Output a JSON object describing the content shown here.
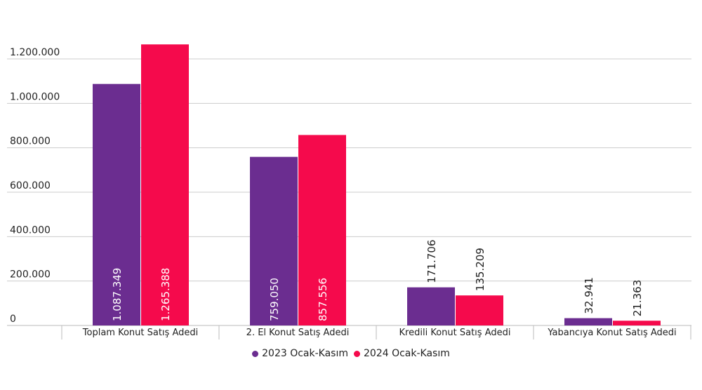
{
  "chart_data": {
    "type": "bar",
    "categories": [
      "Toplam Konut Satış Adedi",
      "2. El Konut Satış Adedi",
      "Kredili Konut Satış Adedi",
      "Yabancıya Konut Satış Adedi"
    ],
    "series": [
      {
        "name": "2023 Ocak-Kasım",
        "color": "#6b2d90",
        "values": [
          1087349,
          759050,
          171706,
          32941
        ],
        "labels": [
          "1.087.349",
          "759.050",
          "171.706",
          "32.941"
        ]
      },
      {
        "name": "2024 Ocak-Kasım",
        "color": "#f50a4c",
        "values": [
          1265388,
          857556,
          135209,
          21363
        ],
        "labels": [
          "1.265.388",
          "857.556",
          "135.209",
          "21.363"
        ]
      }
    ],
    "ylim": [
      0,
      1200000
    ],
    "yticks": [
      0,
      200000,
      400000,
      600000,
      800000,
      1000000,
      1200000
    ],
    "ytick_labels": [
      "0",
      "200.000",
      "400.000",
      "600.000",
      "800.000",
      "1.000.000",
      "1.200.000"
    ],
    "grid": true,
    "legend_position": "bottom"
  }
}
